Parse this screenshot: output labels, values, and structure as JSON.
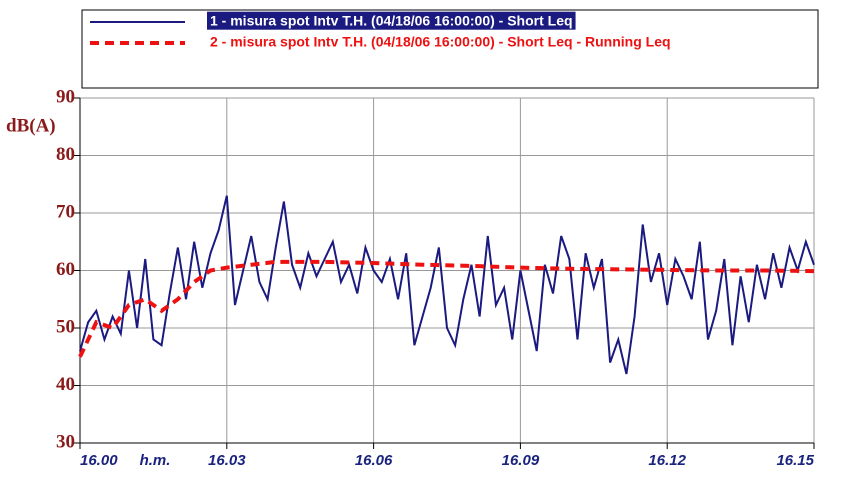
{
  "chart_data": {
    "type": "line",
    "y_label": "dB(A)",
    "x_label": "h.m.",
    "xlim": [
      0,
      900
    ],
    "xticks": [
      {
        "value": 0,
        "label": "16.00"
      },
      {
        "value": 180,
        "label": "16.03"
      },
      {
        "value": 360,
        "label": "16.06"
      },
      {
        "value": 540,
        "label": "16.09"
      },
      {
        "value": 720,
        "label": "16.12"
      },
      {
        "value": 900,
        "label": "16.15"
      }
    ],
    "ylim": [
      30,
      90
    ],
    "yticks": [
      30,
      40,
      50,
      60,
      70,
      80,
      90
    ],
    "grid": true,
    "series": [
      {
        "name": "1 - misura spot  Intv T.H. (04/18/06 16:00:00) - Short Leq",
        "color": "#1a1a80",
        "style": "solid",
        "x": [
          0,
          10,
          20,
          30,
          40,
          50,
          60,
          70,
          80,
          90,
          100,
          110,
          120,
          130,
          140,
          150,
          160,
          170,
          180,
          190,
          200,
          210,
          220,
          230,
          240,
          250,
          260,
          270,
          280,
          290,
          300,
          310,
          320,
          330,
          340,
          350,
          360,
          370,
          380,
          390,
          400,
          410,
          420,
          430,
          440,
          450,
          460,
          470,
          480,
          490,
          500,
          510,
          520,
          530,
          540,
          550,
          560,
          570,
          580,
          590,
          600,
          610,
          620,
          630,
          640,
          650,
          660,
          670,
          680,
          690,
          700,
          710,
          720,
          730,
          740,
          750,
          760,
          770,
          780,
          790,
          800,
          810,
          820,
          830,
          840,
          850,
          860,
          870,
          880,
          890,
          900
        ],
        "values": [
          46,
          51,
          53,
          48,
          52,
          49,
          60,
          50,
          62,
          48,
          47,
          56,
          64,
          55,
          65,
          57,
          63,
          67,
          73,
          54,
          60,
          66,
          58,
          55,
          64,
          72,
          61,
          57,
          63,
          59,
          62,
          65,
          58,
          61,
          56,
          64,
          60,
          58,
          62,
          55,
          63,
          47,
          52,
          57,
          64,
          50,
          47,
          55,
          61,
          52,
          66,
          54,
          57,
          48,
          60,
          53,
          46,
          61,
          56,
          66,
          62,
          48,
          63,
          57,
          62,
          44,
          48,
          42,
          52,
          68,
          58,
          63,
          54,
          62,
          59,
          55,
          65,
          48,
          53,
          62,
          47,
          59,
          51,
          61,
          55,
          63,
          57,
          64,
          60,
          65,
          61
        ]
      },
      {
        "name": "2 - misura spot  Intv T.H. (04/18/06 16:00:00) - Short Leq - Running Leq",
        "color": "#ee1111",
        "style": "dashed",
        "x": [
          0,
          20,
          40,
          60,
          80,
          100,
          120,
          140,
          160,
          180,
          240,
          300,
          360,
          420,
          480,
          540,
          600,
          660,
          720,
          780,
          840,
          900
        ],
        "values": [
          45,
          51,
          50,
          54,
          55,
          53,
          55,
          58,
          60,
          60.5,
          61.5,
          61.5,
          61.3,
          61,
          60.8,
          60.5,
          60.3,
          60.2,
          60.1,
          60,
          60,
          59.9
        ]
      }
    ]
  }
}
